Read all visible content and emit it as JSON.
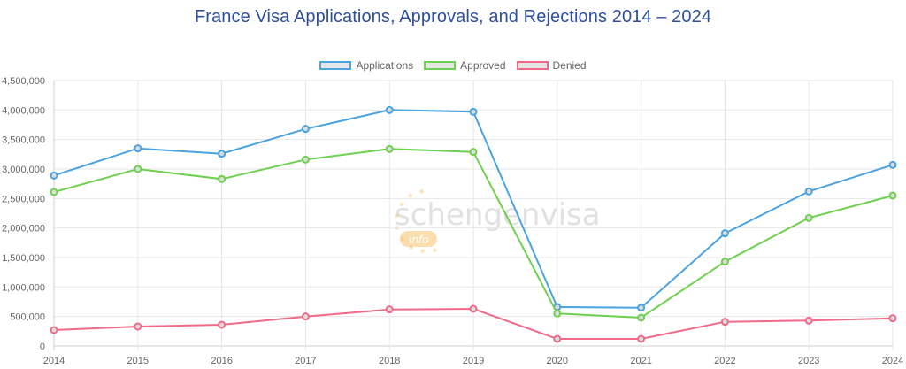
{
  "chart_data": {
    "type": "line",
    "title": "France Visa Applications, Approvals, and Rejections 2014 – 2024",
    "categories": [
      "2014",
      "2015",
      "2016",
      "2017",
      "2018",
      "2019",
      "2020",
      "2021",
      "2022",
      "2023",
      "2024"
    ],
    "ylim": [
      0,
      4500000
    ],
    "yticks": [
      0,
      500000,
      1000000,
      1500000,
      2000000,
      2500000,
      3000000,
      3500000,
      4000000,
      4500000
    ],
    "ytick_labels": [
      "0",
      "500,000",
      "1,000,000",
      "1,500,000",
      "2,000,000",
      "2,500,000",
      "3,000,000",
      "3,500,000",
      "4,000,000",
      "4,500,000"
    ],
    "grid": true,
    "legend_position": "top-center",
    "series": [
      {
        "name": "Applications",
        "color": "#4ba3e0",
        "values": [
          2890000,
          3350000,
          3260000,
          3680000,
          4000000,
          3970000,
          660000,
          650000,
          1910000,
          2620000,
          3070000
        ]
      },
      {
        "name": "Approved",
        "color": "#6fd04f",
        "values": [
          2610000,
          3000000,
          2830000,
          3160000,
          3340000,
          3290000,
          550000,
          480000,
          1430000,
          2170000,
          2550000
        ]
      },
      {
        "name": "Denied",
        "color": "#f06b8a",
        "values": [
          270000,
          330000,
          360000,
          500000,
          620000,
          630000,
          120000,
          120000,
          410000,
          430000,
          470000
        ]
      }
    ]
  },
  "watermark": {
    "text": "schengenvisa",
    "badge": "info"
  }
}
